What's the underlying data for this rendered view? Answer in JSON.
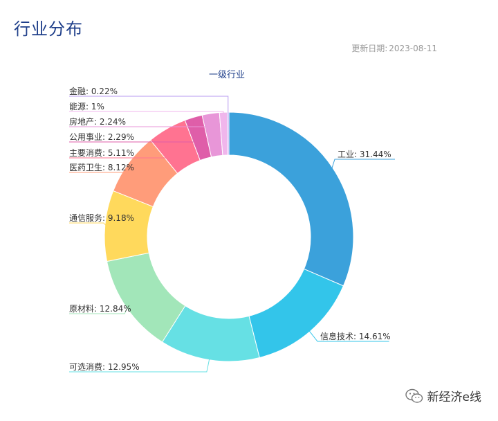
{
  "page": {
    "title": "行业分布",
    "update_label": "更新日期:",
    "update_date": "2023-08-11"
  },
  "watermark": {
    "text": "新经济e线",
    "icon": "wechat-icon"
  },
  "chart_data": {
    "type": "pie",
    "subtype": "donut",
    "title": "一级行业",
    "start_angle_deg": 0,
    "direction": "clockwise",
    "slices": [
      {
        "name": "工业",
        "value": 31.44,
        "label": "工业: 31.44%",
        "color": "#3ba1db"
      },
      {
        "name": "信息技术",
        "value": 14.61,
        "label": "信息技术: 14.61%",
        "color": "#33c5ea"
      },
      {
        "name": "可选消费",
        "value": 12.95,
        "label": "可选消费: 12.95%",
        "color": "#66e0e4"
      },
      {
        "name": "原材料",
        "value": 12.84,
        "label": "原材料: 12.84%",
        "color": "#a2e6b9"
      },
      {
        "name": "通信服务",
        "value": 9.18,
        "label": "通信服务: 9.18%",
        "color": "#ffd95c"
      },
      {
        "name": "医药卫生",
        "value": 8.12,
        "label": "医药卫生: 8.12%",
        "color": "#ff9c7a"
      },
      {
        "name": "主要消费",
        "value": 5.11,
        "label": "主要消费: 5.11%",
        "color": "#ff7391"
      },
      {
        "name": "公用事业",
        "value": 2.29,
        "label": "公用事业: 2.29%",
        "color": "#df5ea9"
      },
      {
        "name": "房地产",
        "value": 2.24,
        "label": "房地产: 2.24%",
        "color": "#e896d8"
      },
      {
        "name": "能源",
        "value": 1.0,
        "label": "能源: 1%",
        "color": "#f0b6ec"
      },
      {
        "name": "金融",
        "value": 0.22,
        "label": "金融: 0.22%",
        "color": "#b79af0"
      }
    ]
  }
}
